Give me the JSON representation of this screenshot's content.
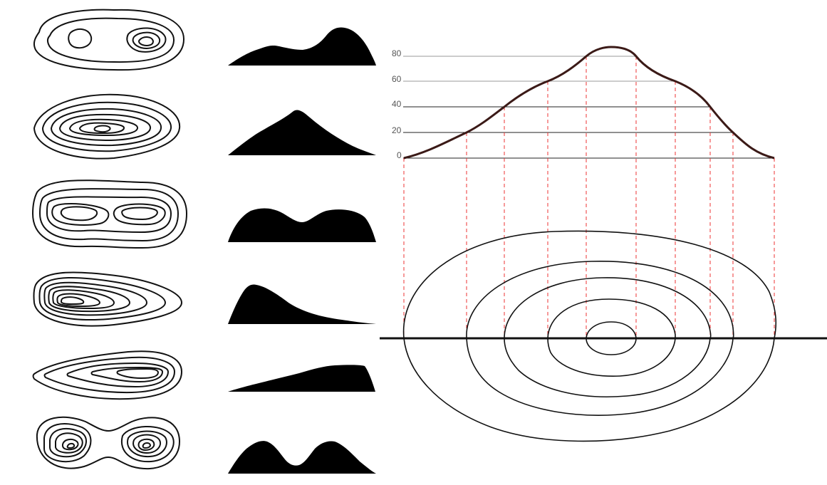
{
  "elevation_labels": [
    "80",
    "60",
    "40",
    "20",
    "0"
  ],
  "colors": {
    "contour": "#111111",
    "profile": "#3b1a17",
    "silhouette": "#000000",
    "projection": "#ee3333",
    "level_line": "#222222",
    "level_line_light": "#999999",
    "label": "#555555"
  },
  "examples": [
    {
      "shape": "two-summits-unequal"
    },
    {
      "shape": "single-cone"
    },
    {
      "shape": "twin-rounded-summits"
    },
    {
      "shape": "steep-left-gentle-right"
    },
    {
      "shape": "gentle-ramp-to-plateau"
    },
    {
      "shape": "twin-separate-peaks"
    }
  ]
}
